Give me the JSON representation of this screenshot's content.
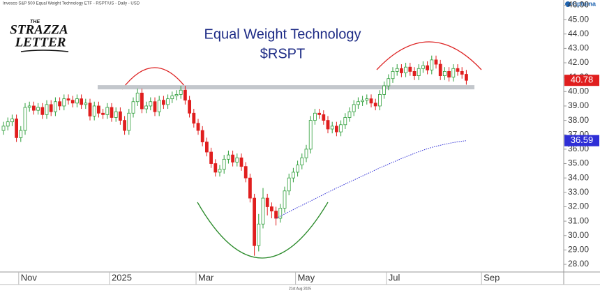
{
  "chart_data": {
    "type": "candlestick",
    "header": "Invesco S&P 500 Equal Weight Technology ETF - RSPT/US - Daily - USD",
    "logo": {
      "top": "THE",
      "middle": "STRAZZA",
      "bottom": "LETTER"
    },
    "brand": "Optuma",
    "footer": "21st Aug 2025",
    "title": "Equal Weight Technology",
    "subtitle": "$RSPT",
    "up_color": "#2e9e3a",
    "down_color": "#e01e1e",
    "categories": [
      null,
      null,
      null,
      null,
      "Nov",
      null,
      null,
      null,
      null,
      null,
      null,
      null,
      null,
      null,
      null,
      null,
      null,
      null,
      null,
      null,
      null,
      null,
      null,
      null,
      null,
      "2025",
      null,
      null,
      null,
      null,
      null,
      null,
      null,
      null,
      null,
      null,
      null,
      null,
      null,
      null,
      null,
      null,
      null,
      null,
      null,
      "Mar",
      null,
      null,
      null,
      null,
      null,
      null,
      null,
      null,
      null,
      null,
      null,
      null,
      null,
      null,
      null,
      null,
      null,
      null,
      null,
      null,
      null,
      null,
      "May",
      null,
      null,
      null,
      null,
      null,
      null,
      null,
      null,
      null,
      null,
      null,
      null,
      null,
      null,
      null,
      null,
      null,
      null,
      null,
      null,
      "Jul",
      null,
      null,
      null,
      null,
      null,
      null,
      null,
      null,
      null,
      null,
      null,
      null,
      null,
      null,
      null,
      null,
      null,
      null,
      null,
      null,
      null,
      "Sep"
    ],
    "open": [
      37.3,
      37.6,
      37.9,
      38.1,
      36.8,
      37.3,
      38.9,
      39.0,
      38.7,
      38.9,
      38.4,
      39.1,
      38.6,
      39.3,
      39.0,
      39.5,
      39.4,
      39.2,
      39.5,
      39.1,
      39.2,
      38.3,
      39.0,
      38.5,
      38.4,
      38.9,
      38.2,
      38.6,
      38.0,
      37.3,
      38.5,
      39.3,
      39.9,
      38.8,
      39.0,
      39.3,
      38.6,
      39.4,
      39.1,
      39.5,
      39.7,
      39.8,
      40.1,
      39.4,
      38.5,
      37.8,
      37.3,
      36.5,
      35.8,
      35.0,
      34.4,
      34.6,
      35.3,
      35.6,
      35.1,
      35.4,
      34.8,
      34.0,
      32.6,
      29.3,
      30.8,
      32.6,
      32.0,
      31.7,
      31.2,
      31.9,
      33.1,
      34.0,
      34.4,
      34.9,
      35.4,
      36.0,
      38.0,
      38.5,
      38.4,
      38.0,
      37.4,
      37.6,
      37.2,
      37.7,
      38.2,
      38.6,
      39.1,
      39.3,
      39.4,
      39.5,
      39.2,
      39.0,
      39.8,
      40.4,
      40.9,
      41.4,
      41.6,
      41.3,
      41.7,
      41.4,
      41.1,
      41.6,
      41.8,
      41.5,
      42.2,
      41.9,
      41.1,
      41.4,
      41.0,
      41.6,
      41.4,
      41.2,
      null,
      null,
      null,
      null
    ],
    "high": [
      37.9,
      38.2,
      38.4,
      38.4,
      37.6,
      39.2,
      39.3,
      39.3,
      39.2,
      39.2,
      39.4,
      39.4,
      39.6,
      39.6,
      39.8,
      39.8,
      39.7,
      39.8,
      39.8,
      39.5,
      39.5,
      39.3,
      39.3,
      38.8,
      39.2,
      39.2,
      38.9,
      38.9,
      38.3,
      38.8,
      39.6,
      40.2,
      40.2,
      39.3,
      39.6,
      39.6,
      39.7,
      39.7,
      39.8,
      40.0,
      40.1,
      40.4,
      40.4,
      39.7,
      38.8,
      38.1,
      37.6,
      36.8,
      36.1,
      35.3,
      34.9,
      35.6,
      35.9,
      35.9,
      35.7,
      35.7,
      35.1,
      34.3,
      32.9,
      31.5,
      33.3,
      32.9,
      32.3,
      32.0,
      32.2,
      33.4,
      34.3,
      34.7,
      35.2,
      35.7,
      36.3,
      38.3,
      38.8,
      38.8,
      38.7,
      38.3,
      37.9,
      37.9,
      38.0,
      38.5,
      38.9,
      39.4,
      39.6,
      39.7,
      39.8,
      39.8,
      39.5,
      40.1,
      40.7,
      41.2,
      41.7,
      41.9,
      41.9,
      42.0,
      42.0,
      41.7,
      41.9,
      42.1,
      42.1,
      42.5,
      42.5,
      42.2,
      41.7,
      41.7,
      41.9,
      41.9,
      41.7,
      41.5,
      null,
      null,
      null,
      null
    ],
    "low": [
      37.0,
      37.3,
      37.6,
      36.5,
      36.5,
      37.0,
      38.6,
      38.4,
      38.4,
      38.1,
      38.1,
      38.3,
      38.3,
      38.7,
      38.7,
      39.1,
      38.9,
      38.9,
      38.8,
      38.8,
      38.0,
      38.0,
      38.2,
      38.1,
      38.1,
      37.9,
      37.9,
      37.7,
      37.0,
      37.0,
      38.2,
      39.0,
      38.5,
      38.5,
      38.7,
      38.3,
      38.3,
      38.8,
      38.8,
      39.2,
      39.4,
      39.5,
      39.1,
      38.2,
      37.5,
      37.0,
      36.2,
      35.5,
      34.7,
      34.1,
      34.1,
      34.3,
      35.0,
      34.8,
      34.8,
      34.5,
      33.7,
      32.3,
      28.6,
      28.9,
      30.5,
      31.4,
      31.2,
      30.7,
      30.9,
      31.6,
      32.8,
      33.7,
      34.1,
      34.6,
      35.1,
      35.7,
      37.7,
      38.1,
      37.7,
      37.1,
      37.1,
      36.9,
      36.9,
      37.4,
      37.9,
      38.3,
      38.8,
      39.0,
      39.1,
      38.9,
      38.7,
      38.7,
      39.5,
      40.1,
      40.6,
      41.1,
      41.0,
      41.0,
      41.1,
      40.8,
      40.8,
      41.3,
      41.2,
      41.2,
      41.6,
      40.8,
      40.8,
      40.7,
      40.7,
      41.1,
      40.9,
      40.48,
      null,
      null,
      null,
      null
    ],
    "close": [
      37.6,
      37.9,
      38.1,
      36.8,
      37.3,
      38.9,
      39.0,
      38.7,
      38.9,
      38.4,
      39.1,
      38.6,
      39.3,
      39.0,
      39.5,
      39.4,
      39.2,
      39.5,
      39.1,
      39.2,
      38.3,
      39.0,
      38.5,
      38.4,
      38.9,
      38.2,
      38.6,
      38.0,
      37.3,
      38.5,
      39.3,
      39.9,
      38.8,
      39.0,
      39.3,
      38.6,
      39.4,
      39.1,
      39.5,
      39.7,
      39.8,
      40.1,
      39.4,
      38.5,
      37.8,
      37.3,
      36.5,
      35.8,
      35.0,
      34.4,
      34.6,
      35.3,
      35.6,
      35.1,
      35.4,
      34.8,
      34.0,
      32.6,
      29.3,
      30.8,
      32.6,
      32.0,
      31.7,
      31.2,
      31.9,
      33.1,
      34.0,
      34.4,
      34.9,
      35.4,
      36.0,
      38.0,
      38.5,
      38.4,
      38.0,
      37.4,
      37.6,
      37.2,
      37.7,
      38.2,
      38.6,
      39.1,
      39.3,
      39.4,
      39.5,
      39.2,
      39.0,
      39.8,
      40.4,
      40.9,
      41.4,
      41.6,
      41.3,
      41.7,
      41.4,
      41.1,
      41.6,
      41.8,
      41.5,
      42.2,
      41.9,
      41.1,
      41.4,
      41.0,
      41.6,
      41.4,
      41.2,
      40.78,
      null,
      null,
      null,
      null
    ],
    "close_label_color": "#e01e1e",
    "moving_average": {
      "color": "#2f2fd6",
      "values": [
        null,
        null,
        null,
        null,
        null,
        null,
        null,
        null,
        null,
        null,
        null,
        null,
        null,
        null,
        null,
        null,
        null,
        null,
        null,
        null,
        null,
        null,
        null,
        null,
        null,
        null,
        null,
        null,
        null,
        null,
        null,
        null,
        null,
        null,
        null,
        null,
        null,
        null,
        null,
        null,
        null,
        null,
        null,
        null,
        null,
        null,
        null,
        null,
        null,
        null,
        null,
        null,
        null,
        null,
        null,
        null,
        null,
        null,
        null,
        null,
        null,
        null,
        null,
        31.2,
        31.35,
        31.5,
        31.65,
        31.8,
        31.95,
        32.1,
        32.25,
        32.4,
        32.55,
        32.7,
        32.85,
        33.0,
        33.15,
        33.3,
        33.44,
        33.58,
        33.72,
        33.86,
        34.0,
        34.14,
        34.28,
        34.42,
        34.56,
        34.7,
        34.83,
        34.96,
        35.09,
        35.22,
        35.35,
        35.47,
        35.59,
        35.71,
        35.82,
        35.93,
        36.03,
        36.12,
        36.2,
        36.27,
        36.34,
        36.4,
        36.46,
        36.51,
        36.55,
        36.59,
        null,
        null,
        null,
        null
      ]
    },
    "resistance_level": 40.3,
    "ylim": [
      27.47,
      46.36
    ],
    "yticks": [
      {
        "value": 28,
        "label": "28.00"
      },
      {
        "value": 29,
        "label": "29.00"
      },
      {
        "value": 30,
        "label": "30.00"
      },
      {
        "value": 31,
        "label": "31.00"
      },
      {
        "value": 32,
        "label": "32.00"
      },
      {
        "value": 33,
        "label": "33.00"
      },
      {
        "value": 34,
        "label": "34.00"
      },
      {
        "value": 35,
        "label": "35.00"
      },
      {
        "value": 36,
        "label": "36.00"
      },
      {
        "value": 37,
        "label": "37.00"
      },
      {
        "value": 38,
        "label": "38.00"
      },
      {
        "value": 39,
        "label": "39.00"
      },
      {
        "value": 40,
        "label": "40.00"
      },
      {
        "value": 41,
        "label": "41.00"
      },
      {
        "value": 42,
        "label": "42.00"
      },
      {
        "value": 43,
        "label": "43.00"
      },
      {
        "value": 44,
        "label": "44.00"
      },
      {
        "value": 45,
        "label": "45.00"
      },
      {
        "value": 46,
        "label": "46.00"
      }
    ]
  }
}
